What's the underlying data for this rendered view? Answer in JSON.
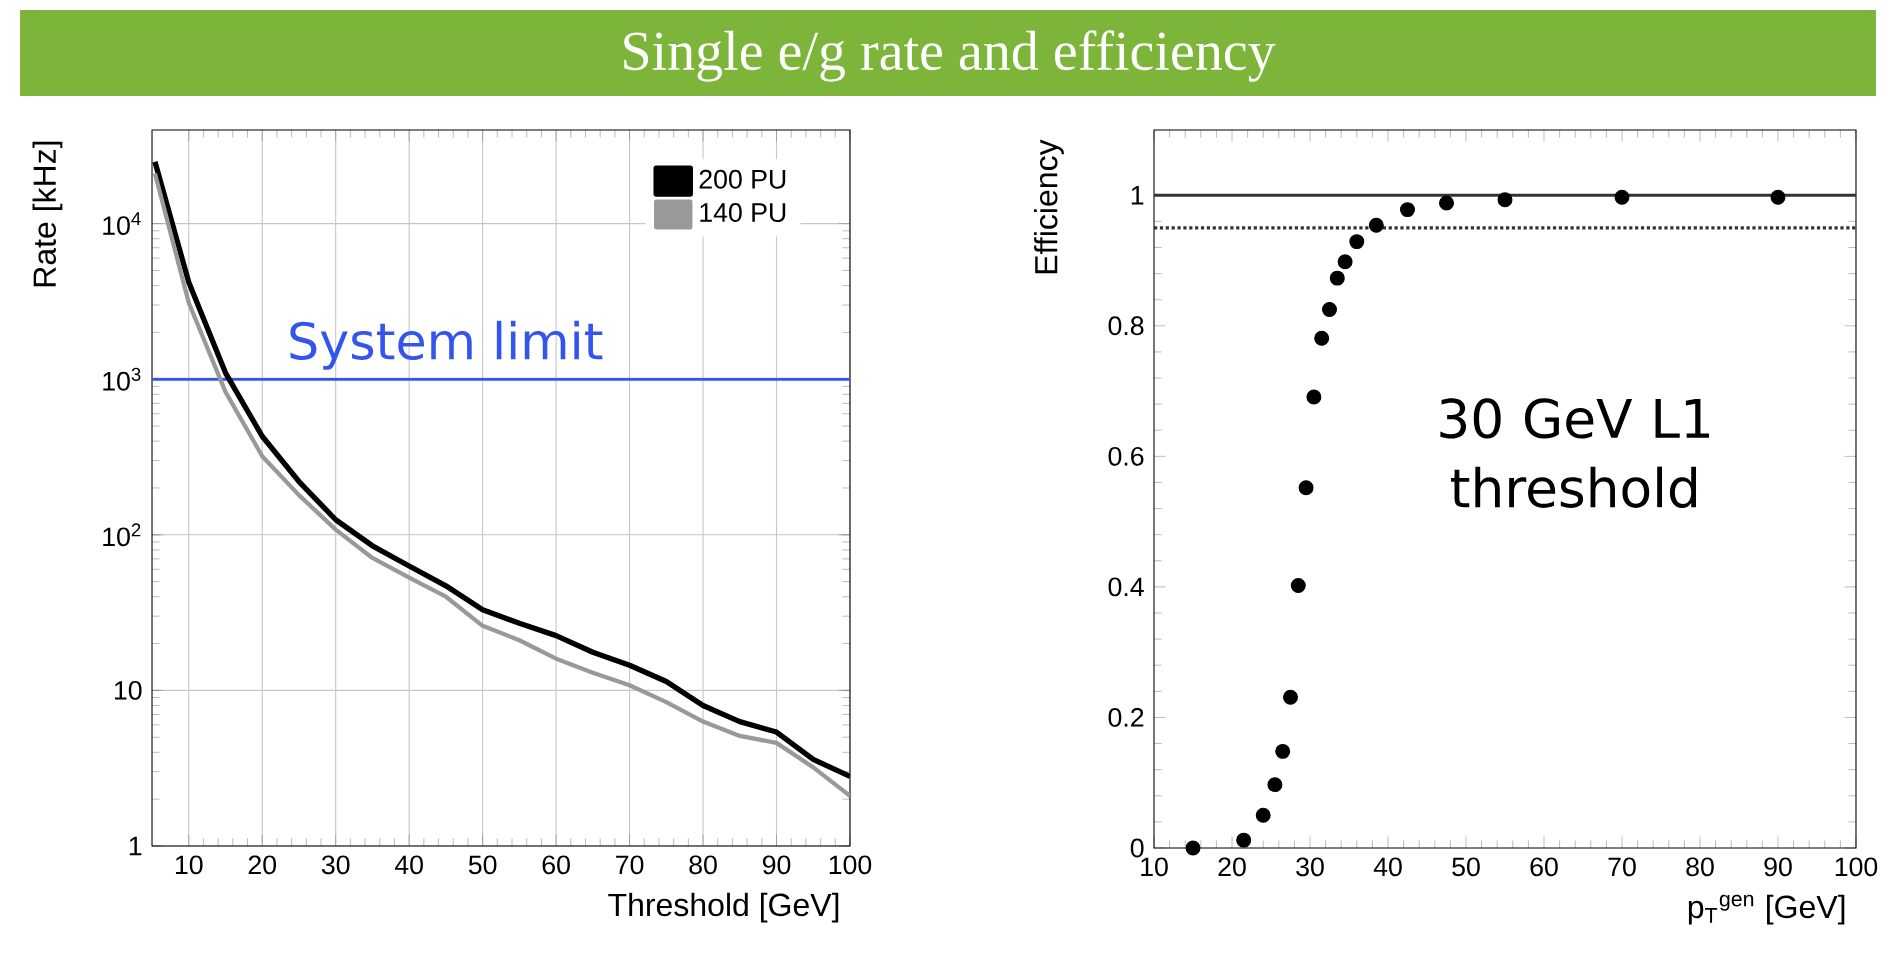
{
  "chart_data": [
    {
      "type": "line",
      "title": "Single e/g rate and efficiency",
      "xlabel": "Threshold [GeV]",
      "ylabel": "Rate [kHz]",
      "log": "y",
      "grid": true,
      "legend": "top right",
      "marker": "none",
      "xlim": [
        5,
        100
      ],
      "xticks": [
        10,
        20,
        30,
        40,
        50,
        60,
        70,
        80,
        90,
        100
      ],
      "ylim": [
        1,
        40000
      ],
      "yticks": [
        1,
        10,
        {
          "value": 100,
          "label": "10$^{2}$"
        },
        {
          "value": 1000,
          "label": "10$^{3}$"
        },
        {
          "value": 10000,
          "label": "10$^{4}$"
        }
      ],
      "x": [
        5.4,
        10,
        15,
        20,
        25,
        30,
        35,
        40,
        45,
        50,
        55,
        60,
        65,
        70,
        75,
        80,
        85,
        90,
        95,
        100
      ],
      "series": [
        {
          "name": "200 PU",
          "color": "#000000",
          "values": [
            25000,
            4200,
            1100,
            430,
            220,
            125,
            85,
            63,
            47,
            33,
            27,
            22.5,
            17.6,
            14.5,
            11.4,
            8.0,
            6.3,
            5.4,
            3.6,
            2.8
          ]
        },
        {
          "name": "140 PU",
          "color": "#999999",
          "values": [
            21000,
            3100,
            830,
            320,
            180,
            108,
            71,
            53,
            40,
            26,
            21,
            16,
            13,
            10.8,
            8.4,
            6.3,
            5.1,
            4.6,
            3.2,
            2.1
          ]
        }
      ],
      "ref_lines": [
        {
          "axis": "y",
          "value": 1000,
          "label": "System limit",
          "color": "#3355ee",
          "line_style": "solid"
        }
      ]
    },
    {
      "type": "scatter",
      "xlabel": "p$_{T}$$^{gen}$ [GeV]",
      "ylabel": "Efficiency",
      "marker": "circle",
      "xlim": [
        10,
        100
      ],
      "xticks": [
        10,
        20,
        30,
        40,
        50,
        60,
        70,
        80,
        90,
        100
      ],
      "ylim": [
        0,
        1.1
      ],
      "yticks": [
        0,
        0.2,
        0.4,
        0.6,
        0.8,
        1
      ],
      "x": [
        15,
        21.5,
        24,
        25.5,
        26.5,
        27.5,
        28.5,
        29.5,
        30.5,
        31.5,
        32.5,
        33.5,
        34.5,
        36,
        38.5,
        42.5,
        47.5,
        55,
        70,
        90
      ],
      "series": [
        {
          "color": "#000000",
          "values": [
            0,
            0.012,
            0.05,
            0.097,
            0.148,
            0.231,
            0.402,
            0.552,
            0.691,
            0.781,
            0.825,
            0.873,
            0.898,
            0.929,
            0.954,
            0.978,
            0.988,
            0.993,
            0.997,
            0.997
          ]
        }
      ],
      "ref_lines": [
        {
          "axis": "y",
          "value": 1,
          "color": "#333333",
          "line_style": "solid"
        },
        {
          "axis": "y",
          "value": 0.95,
          "color": "#333333",
          "line_style": "dotted"
        }
      ],
      "annotations": [
        "30 GeV L1 threshold"
      ]
    }
  ]
}
